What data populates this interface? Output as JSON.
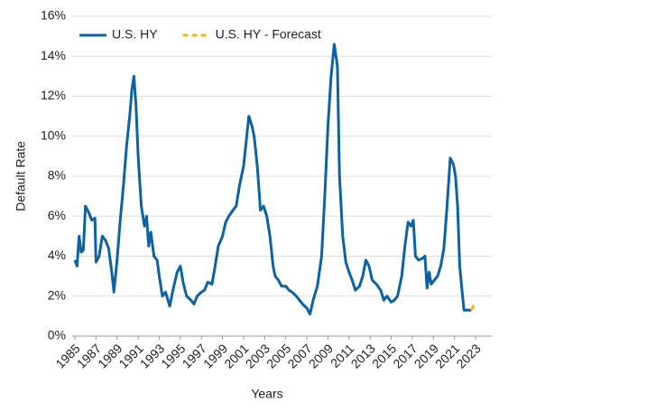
{
  "chart_data": {
    "type": "line",
    "x_label": "Years",
    "y_label": "Default Rate",
    "xlim": [
      1985,
      2023
    ],
    "xticks": [
      1985,
      1987,
      1989,
      1991,
      1993,
      1995,
      1997,
      1999,
      2001,
      2003,
      2005,
      2007,
      2009,
      2011,
      2013,
      2015,
      2017,
      2019,
      2021,
      2023
    ],
    "ylim": [
      0,
      16
    ],
    "yticks": [
      {
        "value": 0,
        "label": "0%"
      },
      {
        "value": 2,
        "label": "2%"
      },
      {
        "value": 4,
        "label": "4%"
      },
      {
        "value": 6,
        "label": "6%"
      },
      {
        "value": 8,
        "label": "8%"
      },
      {
        "value": 10,
        "label": "10%"
      },
      {
        "value": 12,
        "label": "12%"
      },
      {
        "value": 14,
        "label": "14%"
      },
      {
        "value": 16,
        "label": "16%"
      }
    ],
    "grid": true,
    "legend": "top-left",
    "series": [
      {
        "name": "U.S. HY",
        "color": "#0b62a4",
        "dash": false,
        "x": [
          1985.0,
          1985.2,
          1985.4,
          1985.6,
          1985.8,
          1986.0,
          1986.3,
          1986.6,
          1986.9,
          1987.0,
          1987.3,
          1987.6,
          1987.9,
          1988.2,
          1988.5,
          1988.7,
          1989.0,
          1989.3,
          1989.6,
          1989.9,
          1990.2,
          1990.4,
          1990.6,
          1990.8,
          1991.0,
          1991.3,
          1991.6,
          1991.8,
          1992.0,
          1992.2,
          1992.5,
          1992.8,
          1993.0,
          1993.3,
          1993.6,
          1994.0,
          1994.3,
          1994.7,
          1995.0,
          1995.3,
          1995.6,
          1996.0,
          1996.3,
          1996.6,
          1997.0,
          1997.3,
          1997.6,
          1998.0,
          1998.3,
          1998.6,
          1999.0,
          1999.3,
          1999.6,
          2000.0,
          2000.3,
          2000.6,
          2001.0,
          2001.3,
          2001.5,
          2001.8,
          2002.0,
          2002.3,
          2002.6,
          2002.9,
          2003.2,
          2003.5,
          2003.8,
          2004.0,
          2004.3,
          2004.6,
          2005.0,
          2005.3,
          2005.6,
          2006.0,
          2006.3,
          2006.6,
          2007.0,
          2007.3,
          2007.6,
          2008.0,
          2008.4,
          2008.7,
          2009.0,
          2009.3,
          2009.6,
          2009.9,
          2010.1,
          2010.4,
          2010.7,
          2011.0,
          2011.3,
          2011.6,
          2012.0,
          2012.3,
          2012.6,
          2012.9,
          2013.2,
          2013.6,
          2014.0,
          2014.3,
          2014.6,
          2015.0,
          2015.3,
          2015.6,
          2016.0,
          2016.3,
          2016.6,
          2016.9,
          2017.1,
          2017.3,
          2017.6,
          2018.0,
          2018.2,
          2018.4,
          2018.6,
          2018.8,
          2019.1,
          2019.4,
          2019.7,
          2020.0,
          2020.3,
          2020.6,
          2020.9,
          2021.1,
          2021.3,
          2021.5,
          2021.7,
          2021.9,
          2022.3,
          2022.6
        ],
        "values": [
          3.8,
          3.5,
          5.0,
          4.2,
          4.3,
          6.5,
          6.2,
          5.8,
          5.9,
          3.7,
          4.0,
          5.0,
          4.8,
          4.4,
          3.2,
          2.2,
          3.8,
          5.8,
          7.5,
          9.5,
          11.0,
          12.3,
          13.0,
          11.5,
          9.0,
          6.5,
          5.5,
          6.0,
          4.5,
          5.2,
          4.0,
          3.8,
          3.0,
          2.0,
          2.2,
          1.5,
          2.3,
          3.2,
          3.5,
          2.6,
          2.0,
          1.8,
          1.6,
          2.0,
          2.2,
          2.3,
          2.7,
          2.6,
          3.5,
          4.5,
          5.0,
          5.7,
          6.0,
          6.3,
          6.5,
          7.5,
          8.5,
          10.0,
          11.0,
          10.5,
          10.0,
          8.5,
          6.3,
          6.5,
          6.0,
          5.0,
          3.5,
          3.0,
          2.8,
          2.5,
          2.5,
          2.3,
          2.2,
          2.0,
          1.8,
          1.6,
          1.4,
          1.1,
          1.8,
          2.5,
          4.0,
          7.0,
          10.5,
          13.0,
          14.6,
          13.5,
          8.0,
          5.0,
          3.7,
          3.2,
          2.8,
          2.3,
          2.5,
          3.0,
          3.8,
          3.5,
          2.8,
          2.6,
          2.3,
          1.8,
          2.0,
          1.7,
          1.8,
          2.0,
          3.0,
          4.5,
          5.7,
          5.5,
          5.8,
          4.0,
          3.8,
          3.9,
          4.0,
          2.4,
          3.2,
          2.6,
          2.8,
          3.0,
          3.5,
          4.4,
          6.5,
          8.9,
          8.6,
          8.0,
          6.5,
          3.5,
          2.4,
          1.3,
          1.3,
          1.3
        ]
      },
      {
        "name": "U.S. HY - Forecast",
        "color": "#f5b41e",
        "dash": true,
        "x": [
          2022.6,
          2022.8,
          2023.0
        ],
        "values": [
          1.3,
          1.5,
          1.6
        ]
      }
    ]
  }
}
